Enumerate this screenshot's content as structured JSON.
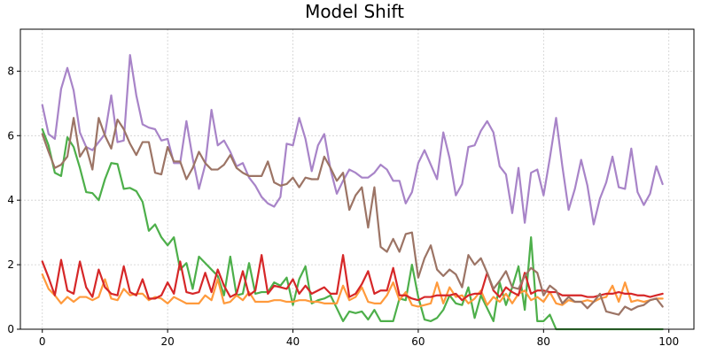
{
  "chart_data": {
    "type": "line",
    "title": "Model Shift",
    "xlabel": "",
    "ylabel": "",
    "xlim": [
      -3.5,
      104
    ],
    "ylim": [
      0,
      9.3
    ],
    "grid": true,
    "x_ticks": [
      0,
      20,
      40,
      60,
      80,
      100
    ],
    "y_ticks": [
      0,
      2,
      4,
      6,
      8
    ],
    "x_tick_labels": [
      "0",
      "20",
      "40",
      "60",
      "80",
      "100"
    ],
    "y_tick_labels": [
      "0",
      "2",
      "4",
      "6",
      "8"
    ],
    "x": [
      0,
      1,
      2,
      3,
      4,
      5,
      6,
      7,
      8,
      9,
      10,
      11,
      12,
      13,
      14,
      15,
      16,
      17,
      18,
      19,
      20,
      21,
      22,
      23,
      24,
      25,
      26,
      27,
      28,
      29,
      30,
      31,
      32,
      33,
      34,
      35,
      36,
      37,
      38,
      39,
      40,
      41,
      42,
      43,
      44,
      45,
      46,
      47,
      48,
      49,
      50,
      51,
      52,
      53,
      54,
      55,
      56,
      57,
      58,
      59,
      60,
      61,
      62,
      63,
      64,
      65,
      66,
      67,
      68,
      69,
      70,
      71,
      72,
      73,
      74,
      75,
      76,
      77,
      78,
      79,
      80,
      81,
      82,
      83,
      84,
      85,
      86,
      87,
      88,
      89,
      90,
      91,
      92,
      93,
      94,
      95,
      96,
      97,
      98,
      99
    ],
    "series": [
      {
        "color": "#4daf4a",
        "values": [
          6.2,
          5.7,
          4.85,
          4.75,
          5.95,
          5.65,
          5.0,
          4.25,
          4.22,
          4.0,
          4.65,
          5.15,
          5.12,
          4.35,
          4.38,
          4.28,
          3.95,
          3.05,
          3.25,
          2.85,
          2.6,
          2.85,
          1.85,
          2.05,
          1.25,
          2.25,
          2.05,
          1.85,
          1.65,
          1.05,
          2.25,
          1.05,
          1.1,
          2.05,
          1.1,
          1.15,
          1.15,
          1.45,
          1.35,
          1.6,
          0.75,
          1.55,
          1.95,
          0.8,
          0.9,
          0.95,
          1.05,
          0.65,
          0.25,
          0.55,
          0.5,
          0.55,
          0.3,
          0.6,
          0.25,
          0.25,
          0.25,
          0.95,
          0.9,
          2.0,
          1.0,
          0.3,
          0.25,
          0.35,
          0.6,
          1.05,
          0.8,
          0.75,
          1.3,
          0.35,
          1.05,
          0.65,
          0.25,
          1.45,
          0.75,
          1.3,
          1.95,
          0.6,
          2.85,
          0.25,
          0.25,
          0.45,
          0.0,
          0.0,
          0.0,
          0.0,
          0.0,
          0.0,
          0.0,
          0.0,
          0.0,
          0.0,
          0.0,
          0.0,
          0.0,
          0.0,
          0.0,
          0.0,
          0.0,
          0.0
        ]
      },
      {
        "color": "#ff9a3c",
        "values": [
          1.7,
          1.25,
          1.05,
          0.8,
          1.0,
          0.85,
          1.0,
          1.0,
          0.9,
          1.0,
          1.55,
          0.95,
          0.9,
          1.25,
          1.05,
          1.1,
          1.1,
          0.9,
          1.0,
          0.95,
          0.8,
          1.0,
          0.9,
          0.8,
          0.8,
          0.8,
          1.05,
          0.9,
          1.55,
          0.8,
          0.85,
          1.05,
          0.9,
          1.15,
          0.85,
          0.85,
          0.85,
          0.9,
          0.9,
          0.85,
          0.85,
          0.9,
          0.9,
          0.85,
          0.85,
          0.8,
          0.8,
          0.8,
          1.35,
          0.9,
          1.0,
          1.3,
          0.85,
          0.8,
          0.8,
          1.05,
          1.45,
          0.9,
          1.15,
          0.75,
          0.7,
          0.75,
          0.8,
          1.45,
          0.8,
          1.3,
          1.0,
          1.05,
          0.8,
          0.95,
          1.2,
          0.75,
          1.0,
          0.85,
          1.1,
          0.8,
          1.1,
          1.2,
          0.9,
          1.0,
          0.85,
          1.15,
          0.8,
          0.75,
          0.9,
          0.85,
          0.85,
          0.9,
          0.85,
          0.95,
          1.0,
          1.35,
          0.85,
          1.45,
          0.85,
          0.9,
          0.85,
          0.9,
          0.95,
          0.95
        ]
      },
      {
        "color": "#d62728",
        "values": [
          2.1,
          1.6,
          1.05,
          2.15,
          1.2,
          1.1,
          2.1,
          1.3,
          1.0,
          1.85,
          1.3,
          1.1,
          1.05,
          1.95,
          1.15,
          1.05,
          1.55,
          0.95,
          0.95,
          1.05,
          1.45,
          1.1,
          2.1,
          1.15,
          1.1,
          1.15,
          1.75,
          1.15,
          1.85,
          1.35,
          1.0,
          1.1,
          1.8,
          1.05,
          1.2,
          2.3,
          1.1,
          1.35,
          1.3,
          1.25,
          1.55,
          1.1,
          1.35,
          1.1,
          1.2,
          1.3,
          1.1,
          1.1,
          2.3,
          1.0,
          1.1,
          1.4,
          1.8,
          1.1,
          1.2,
          1.2,
          1.9,
          1.05,
          1.05,
          0.95,
          0.9,
          1.0,
          1.0,
          1.05,
          1.05,
          1.05,
          1.1,
          0.9,
          1.05,
          1.1,
          1.1,
          1.75,
          1.2,
          1.0,
          1.3,
          1.15,
          1.05,
          1.75,
          1.1,
          1.2,
          1.2,
          1.15,
          1.15,
          1.05,
          1.05,
          1.05,
          1.05,
          1.0,
          1.0,
          1.05,
          1.1,
          1.1,
          1.15,
          1.1,
          1.1,
          1.05,
          1.05,
          1.0,
          1.05,
          1.1
        ]
      },
      {
        "color": "#a884c8",
        "values": [
          6.95,
          6.05,
          5.9,
          7.45,
          8.1,
          7.4,
          6.1,
          5.65,
          5.55,
          5.8,
          6.05,
          7.25,
          5.8,
          5.85,
          8.5,
          7.25,
          6.35,
          6.25,
          6.2,
          5.85,
          5.9,
          5.15,
          5.15,
          6.45,
          5.3,
          4.35,
          5.1,
          6.8,
          5.7,
          5.85,
          5.5,
          5.05,
          5.15,
          4.7,
          4.45,
          4.1,
          3.9,
          3.8,
          4.1,
          5.75,
          5.7,
          6.55,
          5.9,
          4.9,
          5.7,
          6.05,
          4.95,
          4.2,
          4.6,
          4.95,
          4.85,
          4.7,
          4.7,
          4.85,
          5.1,
          4.95,
          4.6,
          4.6,
          3.9,
          4.25,
          5.15,
          5.55,
          5.1,
          4.65,
          6.1,
          5.3,
          4.15,
          4.5,
          5.65,
          5.7,
          6.15,
          6.45,
          6.1,
          5.05,
          4.8,
          3.6,
          5.0,
          3.3,
          4.85,
          4.95,
          4.15,
          5.3,
          6.55,
          5.05,
          3.7,
          4.35,
          5.25,
          4.45,
          3.25,
          4.05,
          4.55,
          5.35,
          4.4,
          4.35,
          5.6,
          4.25,
          3.85,
          4.2,
          5.05,
          4.5
        ]
      },
      {
        "color": "#9c7465",
        "values": [
          6.05,
          5.5,
          5.0,
          5.1,
          5.35,
          6.55,
          5.35,
          5.65,
          4.95,
          6.55,
          6.0,
          5.6,
          6.5,
          6.2,
          5.75,
          5.4,
          5.8,
          5.8,
          4.85,
          4.8,
          5.65,
          5.2,
          5.2,
          4.65,
          5.0,
          5.5,
          5.15,
          4.95,
          4.95,
          5.1,
          5.4,
          5.0,
          4.85,
          4.75,
          4.75,
          4.75,
          5.2,
          4.55,
          4.45,
          4.5,
          4.7,
          4.4,
          4.7,
          4.65,
          4.65,
          5.35,
          5.0,
          4.6,
          4.85,
          3.7,
          4.15,
          4.4,
          3.15,
          4.4,
          2.55,
          2.4,
          2.8,
          2.4,
          2.95,
          3.0,
          1.6,
          2.2,
          2.6,
          1.85,
          1.65,
          1.85,
          1.7,
          1.3,
          2.3,
          2.0,
          2.2,
          1.75,
          1.25,
          1.5,
          1.8,
          1.3,
          1.25,
          1.65,
          1.9,
          1.75,
          1.05,
          1.35,
          1.2,
          0.8,
          1.0,
          0.85,
          0.85,
          0.65,
          0.85,
          1.1,
          0.55,
          0.5,
          0.45,
          0.7,
          0.6,
          0.7,
          0.75,
          0.9,
          0.95,
          0.7
        ]
      }
    ]
  }
}
